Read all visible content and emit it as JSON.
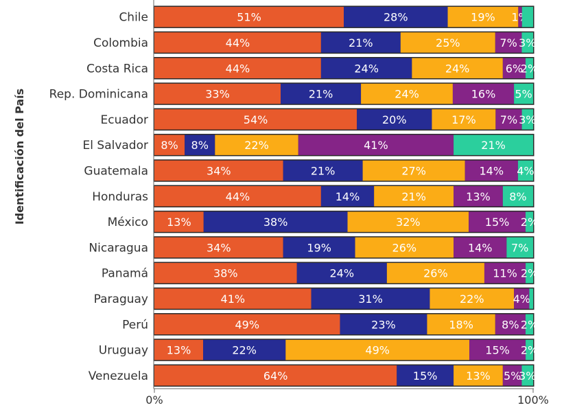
{
  "chart_data": {
    "type": "bar",
    "orientation": "horizontal",
    "stacked": true,
    "percent_stacked": true,
    "ylabel": "Identificación del País",
    "categories": [
      "Chile",
      "Colombia",
      "Costa Rica",
      "Rep. Dominicana",
      "Ecuador",
      "El Salvador",
      "Guatemala",
      "Honduras",
      "México",
      "Nicaragua",
      "Panamá",
      "Paraguay",
      "Perú",
      "Uruguay",
      "Venezuela"
    ],
    "series": [
      {
        "color": "#e85a2c",
        "values": [
          51,
          44,
          44,
          33,
          54,
          8,
          34,
          44,
          13,
          34,
          38,
          41,
          49,
          13,
          64
        ]
      },
      {
        "color": "#262c94",
        "values": [
          28,
          21,
          24,
          21,
          20,
          8,
          21,
          14,
          38,
          19,
          24,
          31,
          23,
          22,
          15
        ]
      },
      {
        "color": "#fbac16",
        "values": [
          19,
          25,
          24,
          24,
          17,
          22,
          27,
          21,
          32,
          26,
          26,
          22,
          18,
          49,
          13
        ]
      },
      {
        "color": "#852487",
        "values": [
          1,
          7,
          6,
          16,
          7,
          41,
          14,
          13,
          15,
          14,
          11,
          4,
          8,
          15,
          5
        ]
      },
      {
        "color": "#2bcf9d",
        "values": [
          3,
          3,
          2,
          5,
          3,
          21,
          4,
          8,
          2,
          7,
          2,
          1,
          2,
          2,
          3
        ]
      }
    ],
    "data_labels": [
      [
        "51%",
        "28%",
        "19%",
        "1%",
        ""
      ],
      [
        "44%",
        "21%",
        "25%",
        "7%",
        "3%"
      ],
      [
        "44%",
        "24%",
        "24%",
        "6%",
        "2%"
      ],
      [
        "33%",
        "21%",
        "24%",
        "16%",
        "5%"
      ],
      [
        "54%",
        "20%",
        "17%",
        "7%",
        "3%"
      ],
      [
        "8%",
        "8%",
        "22%",
        "41%",
        "21%"
      ],
      [
        "34%",
        "21%",
        "27%",
        "14%",
        "4%"
      ],
      [
        "44%",
        "14%",
        "21%",
        "13%",
        "8%"
      ],
      [
        "13%",
        "38%",
        "32%",
        "15%",
        "2%"
      ],
      [
        "34%",
        "19%",
        "26%",
        "14%",
        "7%"
      ],
      [
        "38%",
        "24%",
        "26%",
        "11%",
        "2%"
      ],
      [
        "41%",
        "31%",
        "22%",
        "4%",
        ""
      ],
      [
        "49%",
        "23%",
        "18%",
        "8%",
        "2%"
      ],
      [
        "13%",
        "22%",
        "49%",
        "15%",
        "2%"
      ],
      [
        "64%",
        "15%",
        "13%",
        "5%",
        "3%"
      ]
    ],
    "x_ticks": [
      "0%",
      "100%"
    ],
    "xlim": [
      0,
      100
    ],
    "grid": false,
    "legend": "none"
  }
}
